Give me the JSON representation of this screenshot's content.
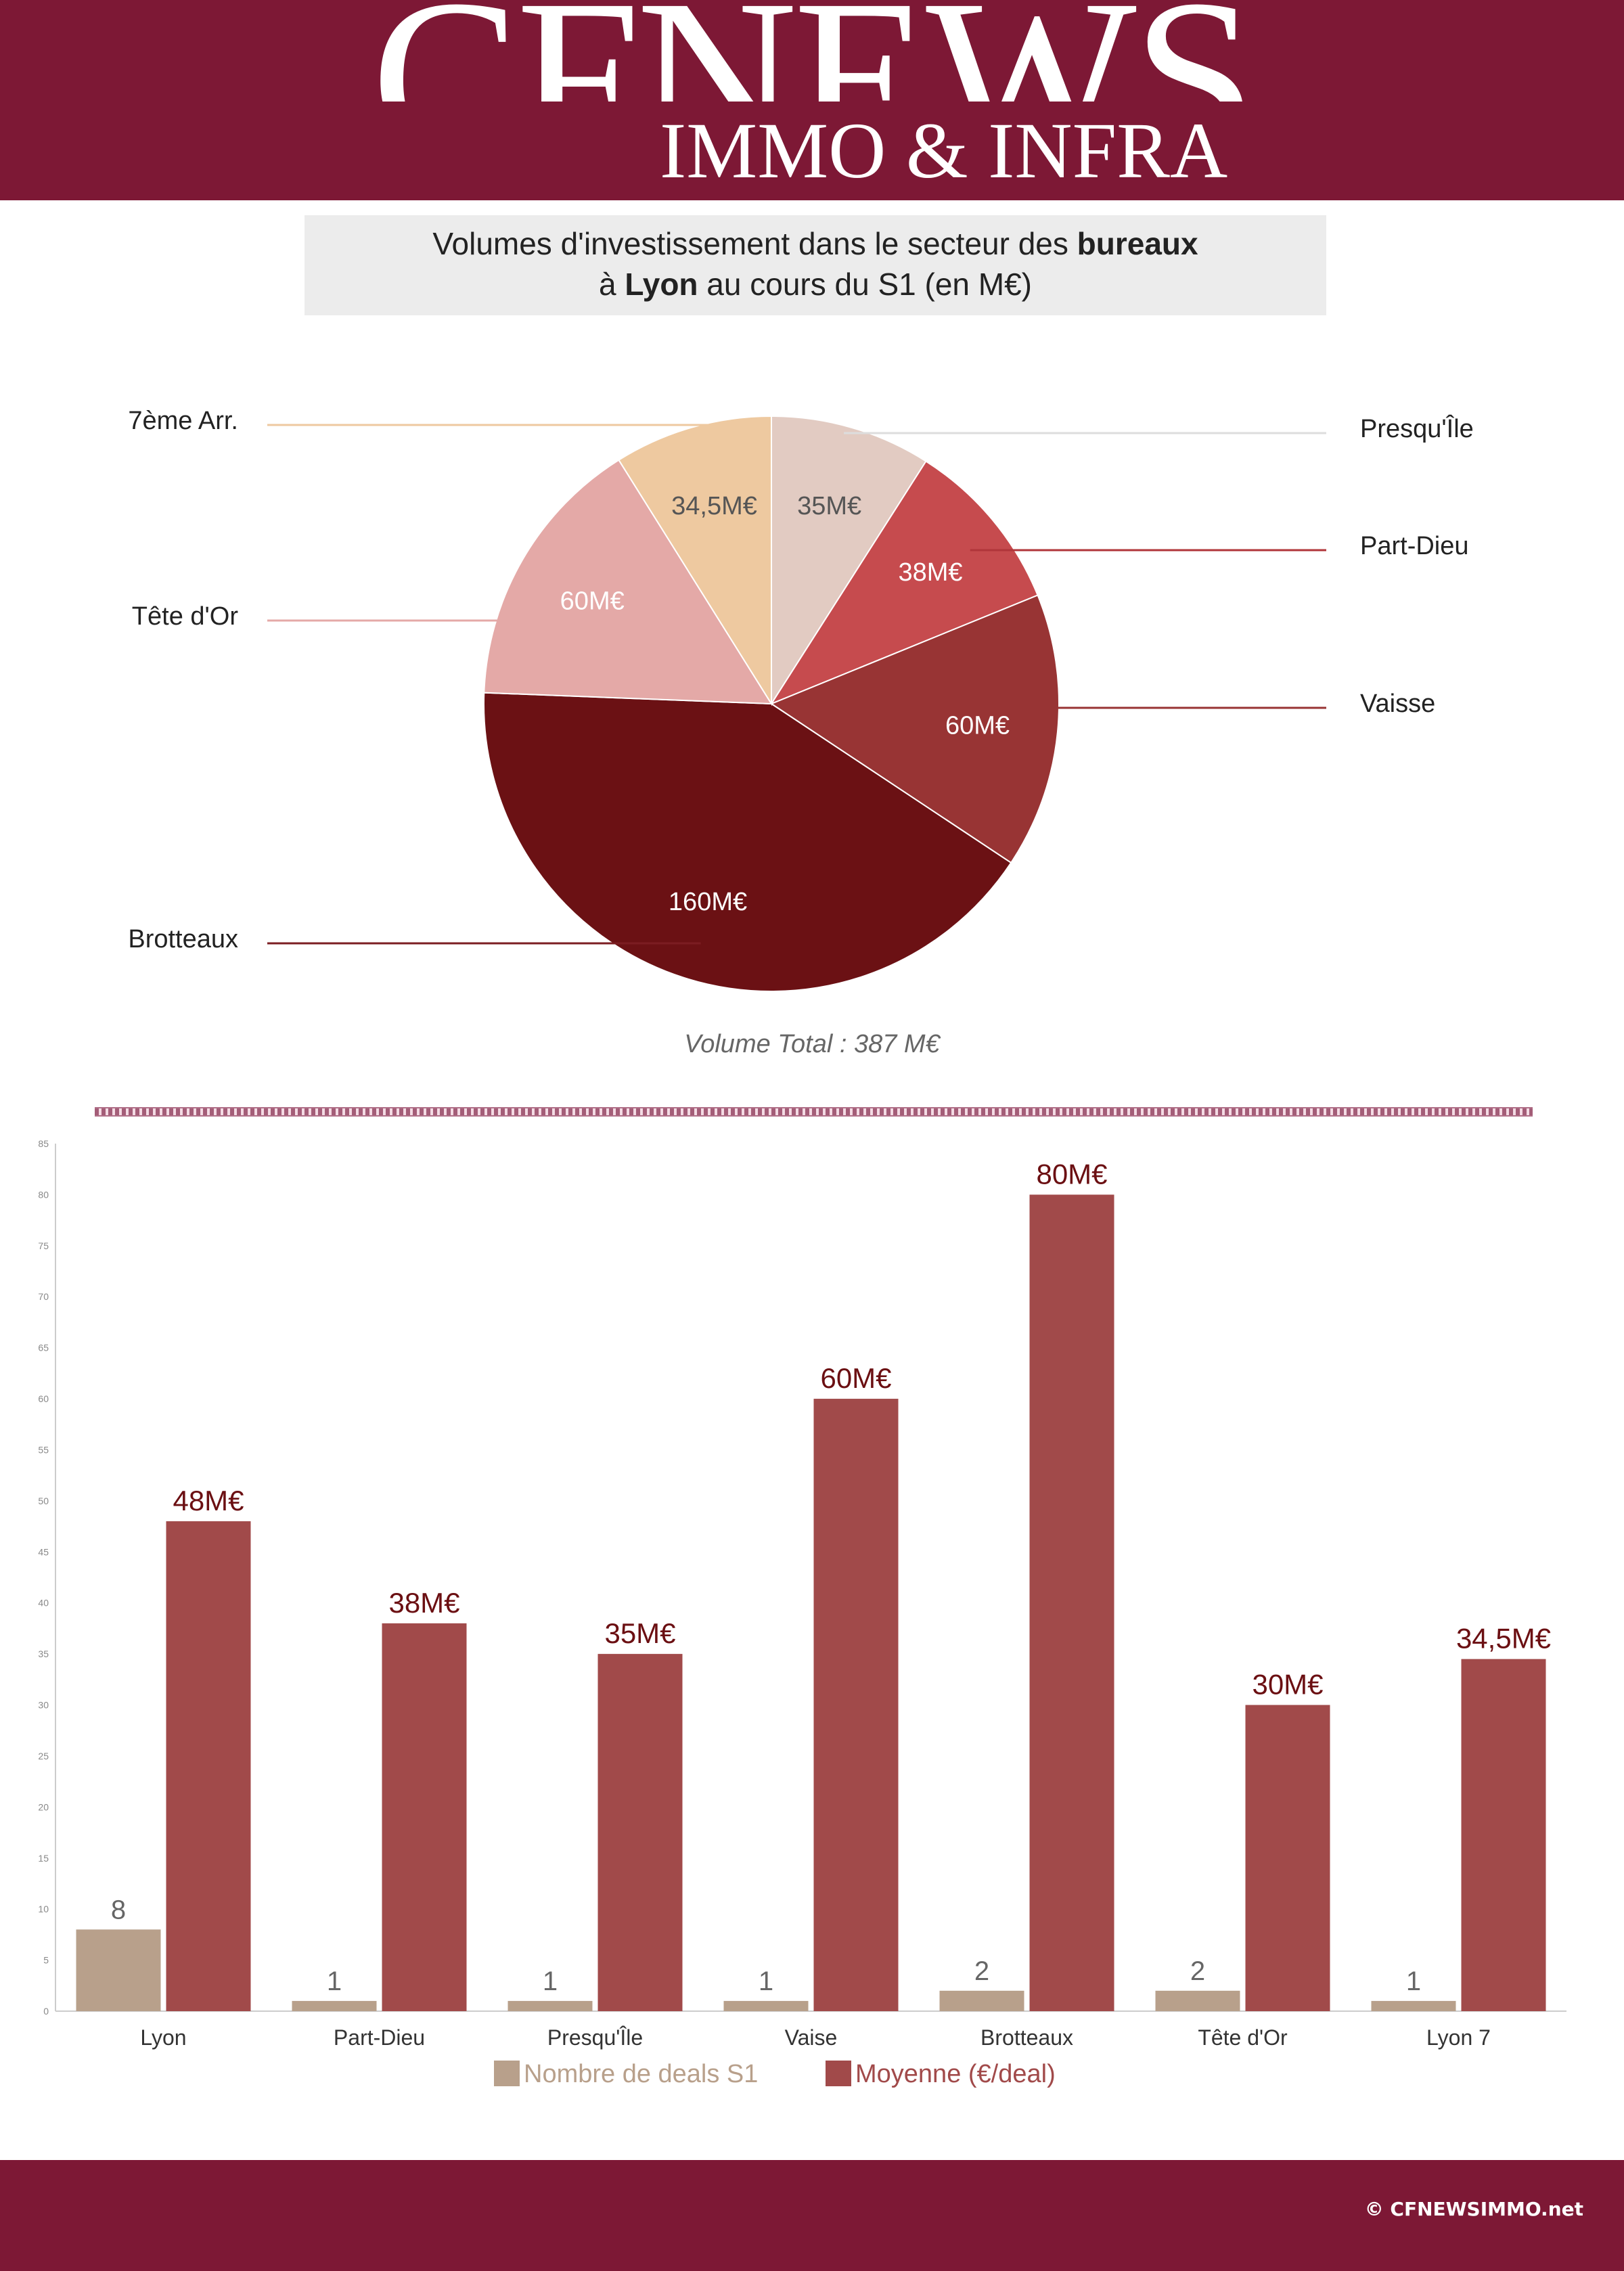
{
  "brand": {
    "logo_main": "CFNEWS",
    "logo_sub": "IMMO & INFRA",
    "copyright": "© CFNEWSIMMO.net"
  },
  "title": {
    "line1_pre": "Volumes d'investissement dans le secteur des ",
    "line1_bold": "bureaux",
    "line2_pre": "à ",
    "line2_bold": "Lyon",
    "line2_post": " au cours du S1 (en M€)"
  },
  "total": "Volume Total :  387 M€",
  "colors": {
    "header": "#7d1835",
    "deals": "#b8a08b",
    "average": "#a14a4a",
    "bar_label": "#6b0f12"
  },
  "chart_data": [
    {
      "type": "pie",
      "slices": [
        {
          "name": "Presqu'Île",
          "value": 35,
          "label": "35M€",
          "color": "#e2cbc2"
        },
        {
          "name": "Part-Dieu",
          "value": 38,
          "label": "38M€",
          "color": "#c64b4e"
        },
        {
          "name": "Vaisse",
          "value": 60,
          "label": "60M€",
          "color": "#983434"
        },
        {
          "name": "Brotteaux",
          "value": 160,
          "label": "160M€",
          "color": "#6b1114"
        },
        {
          "name": "Tête d'Or",
          "value": 60,
          "label": "60M€",
          "color": "#e4a9a7"
        },
        {
          "name": "7ème Arr.",
          "value": 34.5,
          "label": "34,5M€",
          "color": "#eec9a0"
        }
      ]
    },
    {
      "type": "bar",
      "categories": [
        "Lyon",
        "Part-Dieu",
        "Presqu'Île",
        "Vaise",
        "Brotteaux",
        "Tête d'Or",
        "Lyon 7"
      ],
      "series": [
        {
          "name": "Nombre de deals S1",
          "values": [
            8,
            1,
            1,
            1,
            2,
            2,
            1
          ],
          "labels": [
            "8",
            "1",
            "1",
            "1",
            "2",
            "2",
            "1"
          ]
        },
        {
          "name": "Moyenne (€/deal)",
          "values": [
            48,
            38,
            35,
            60,
            80,
            30,
            34.5
          ],
          "labels": [
            "48M€",
            "38M€",
            "35M€",
            "60M€",
            "80M€",
            "30M€",
            "34,5M€"
          ]
        }
      ],
      "ylim": [
        0,
        85
      ],
      "yticks": [
        0,
        5,
        10,
        15,
        20,
        25,
        30,
        35,
        40,
        45,
        50,
        55,
        60,
        65,
        70,
        75,
        80,
        85
      ],
      "legend": "bottom"
    }
  ]
}
